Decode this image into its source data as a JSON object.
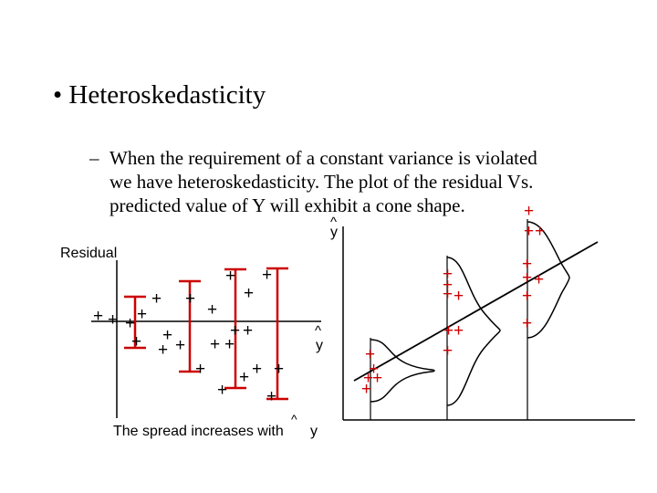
{
  "slide": {
    "bullet_title": "• Heteroskedasticity",
    "dash": "–",
    "sub_lines": [
      "When the requirement of a constant variance is violated",
      "we have heteroskedasticity. The plot of the residual Vs.",
      "predicted value of Y will exhibit a cone shape."
    ]
  },
  "residual_plot": {
    "ylabel": "Residual",
    "xlabel": "y",
    "xlabel_hat": "^",
    "caption_left": "The spread increases with",
    "caption_right": "y",
    "caption_hat": "^"
  },
  "regression_plot": {
    "xlabel": "y",
    "xlabel_hat": "^"
  },
  "colors": {
    "text": "#000000",
    "marker": "#cc0000",
    "axis": "#000000"
  }
}
